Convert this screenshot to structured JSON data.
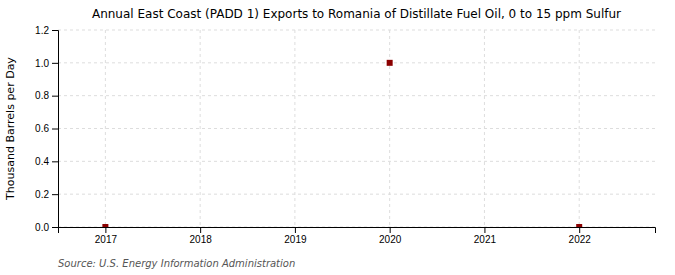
{
  "chart_data": {
    "type": "scatter",
    "title": "Annual East Coast (PADD 1) Exports to Romania of Distillate Fuel Oil, 0 to 15 ppm Sulfur",
    "ylabel": "Thousand Barrels per Day",
    "annotations": [
      "Source: U.S. Energy Information Administration"
    ],
    "x": [
      2017,
      2018,
      2019,
      2020,
      2021,
      2022
    ],
    "values": [
      0.0,
      null,
      null,
      1.0,
      null,
      0.0
    ],
    "color": "#8b0000",
    "marker": "square",
    "xlim": [
      2016.5,
      2022.8
    ],
    "xticks": [
      2017,
      2018,
      2019,
      2020,
      2021,
      2022
    ],
    "ylim": [
      0.0,
      1.2
    ],
    "yticks": [
      {
        "value": 0.0,
        "label": "0.0"
      },
      0.2,
      0.4,
      0.6,
      0.8,
      {
        "value": 1.0,
        "label": "1.0"
      },
      1.2
    ],
    "grid": true
  }
}
